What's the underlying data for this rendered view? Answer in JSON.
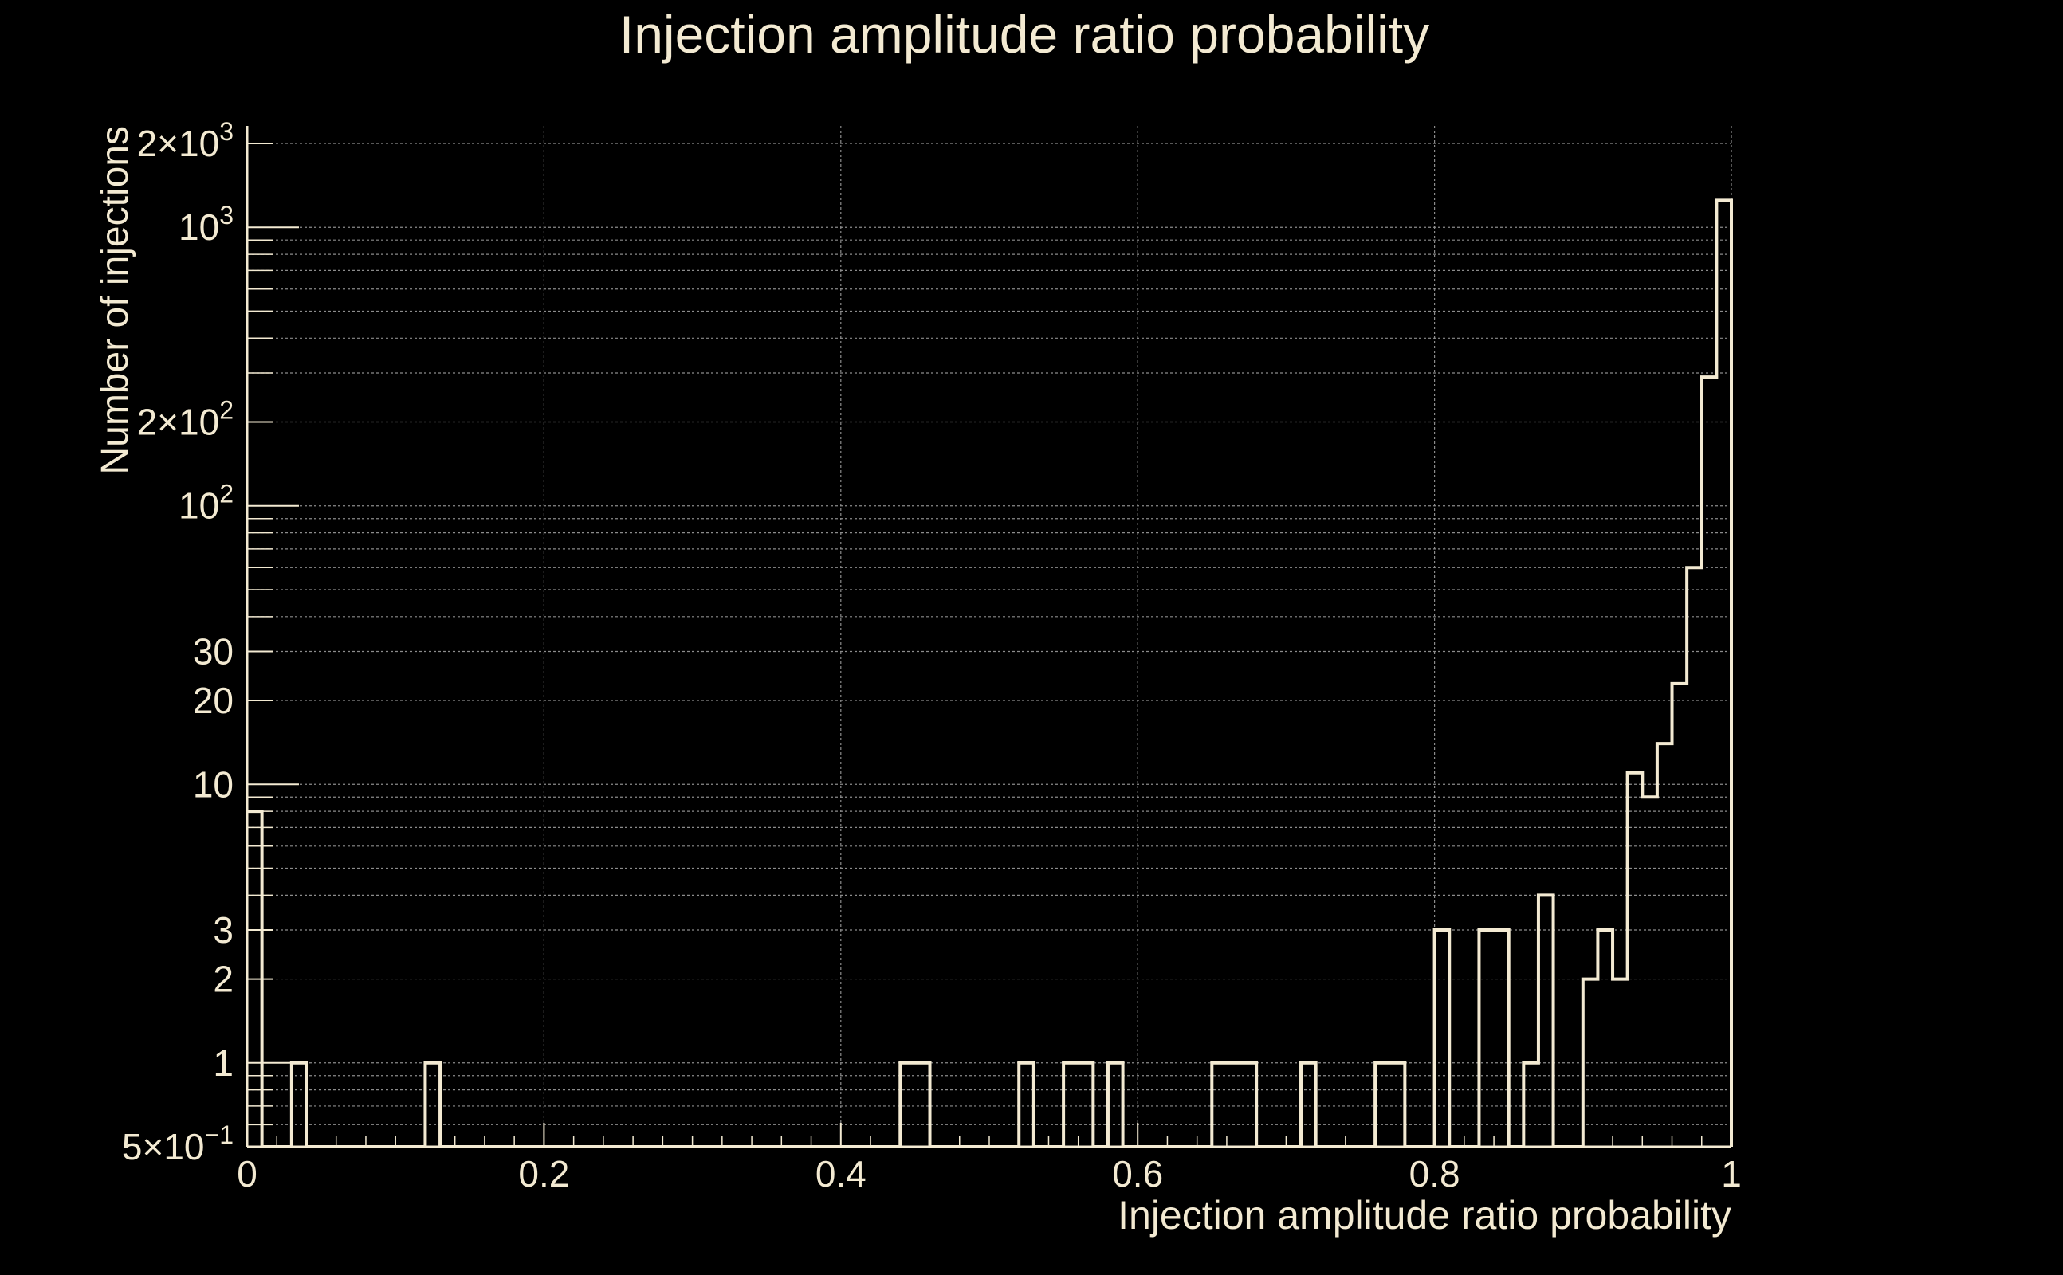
{
  "colors": {
    "background": "#000000",
    "foreground": "#f3ead2",
    "grid": "#8c8c8c"
  },
  "chart_data": {
    "type": "bar",
    "style": "step-histogram",
    "title": "Injection amplitude ratio probability",
    "xlabel": "Injection amplitude ratio probability",
    "ylabel": "Number of injections",
    "xscale": "linear",
    "yscale": "log",
    "xlim": [
      0,
      1
    ],
    "ylim": [
      0.5,
      2000
    ],
    "grid": true,
    "x_ticks": [
      {
        "value": 0,
        "label": "0"
      },
      {
        "value": 0.2,
        "label": "0.2"
      },
      {
        "value": 0.4,
        "label": "0.4"
      },
      {
        "value": 0.6,
        "label": "0.6"
      },
      {
        "value": 0.8,
        "label": "0.8"
      },
      {
        "value": 1,
        "label": "1"
      }
    ],
    "y_ticks": [
      {
        "value": 0.5,
        "mantissa": "5×10",
        "exp": "−1",
        "label": "5×10⁻¹"
      },
      {
        "value": 1,
        "mantissa": "1",
        "exp": "",
        "label": "1"
      },
      {
        "value": 2,
        "mantissa": "2",
        "exp": "",
        "label": "2"
      },
      {
        "value": 3,
        "mantissa": "3",
        "exp": "",
        "label": "3"
      },
      {
        "value": 10,
        "mantissa": "10",
        "exp": "",
        "label": "10"
      },
      {
        "value": 20,
        "mantissa": "20",
        "exp": "",
        "label": "20"
      },
      {
        "value": 30,
        "mantissa": "30",
        "exp": "",
        "label": "30"
      },
      {
        "value": 100,
        "mantissa": "10",
        "exp": "2",
        "label": "10²"
      },
      {
        "value": 200,
        "mantissa": "2×10",
        "exp": "2",
        "label": "2×10²"
      },
      {
        "value": 1000,
        "mantissa": "10",
        "exp": "3",
        "label": "10³"
      },
      {
        "value": 2000,
        "mantissa": "2×10",
        "exp": "3",
        "label": "2×10³"
      }
    ],
    "y_minor_grid": [
      0.6,
      0.7,
      0.8,
      0.9,
      4,
      5,
      6,
      7,
      8,
      9,
      40,
      50,
      60,
      70,
      80,
      90,
      300,
      400,
      500,
      600,
      700,
      800,
      900
    ],
    "bin_width": 0.01,
    "bins": [
      {
        "x0": 0.0,
        "count": 8
      },
      {
        "x0": 0.03,
        "count": 1
      },
      {
        "x0": 0.12,
        "count": 1
      },
      {
        "x0": 0.44,
        "count": 1
      },
      {
        "x0": 0.45,
        "count": 1
      },
      {
        "x0": 0.52,
        "count": 1
      },
      {
        "x0": 0.55,
        "count": 1
      },
      {
        "x0": 0.56,
        "count": 1
      },
      {
        "x0": 0.58,
        "count": 1
      },
      {
        "x0": 0.65,
        "count": 1
      },
      {
        "x0": 0.66,
        "count": 1
      },
      {
        "x0": 0.67,
        "count": 1
      },
      {
        "x0": 0.71,
        "count": 1
      },
      {
        "x0": 0.76,
        "count": 1
      },
      {
        "x0": 0.77,
        "count": 1
      },
      {
        "x0": 0.8,
        "count": 3
      },
      {
        "x0": 0.83,
        "count": 3
      },
      {
        "x0": 0.84,
        "count": 3
      },
      {
        "x0": 0.86,
        "count": 1
      },
      {
        "x0": 0.87,
        "count": 4
      },
      {
        "x0": 0.9,
        "count": 2
      },
      {
        "x0": 0.91,
        "count": 3
      },
      {
        "x0": 0.92,
        "count": 2
      },
      {
        "x0": 0.93,
        "count": 11
      },
      {
        "x0": 0.94,
        "count": 9
      },
      {
        "x0": 0.95,
        "count": 14
      },
      {
        "x0": 0.96,
        "count": 23
      },
      {
        "x0": 0.97,
        "count": 60
      },
      {
        "x0": 0.98,
        "count": 290
      },
      {
        "x0": 0.99,
        "count": 1250
      }
    ]
  }
}
